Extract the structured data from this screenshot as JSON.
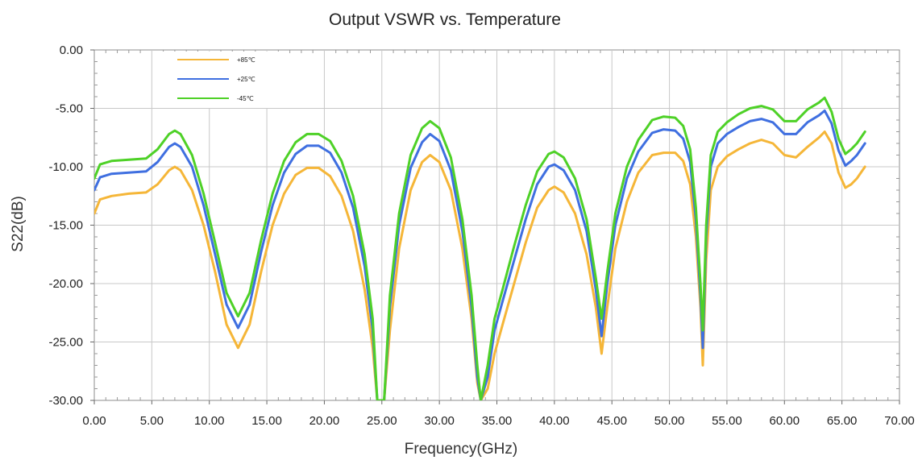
{
  "chart_data": {
    "type": "line",
    "title": "Output VSWR vs. Temperature",
    "xlabel": "Frequency(GHz)",
    "ylabel": "S22(dB)",
    "xlim": [
      0,
      70
    ],
    "ylim": [
      -30,
      0
    ],
    "xticks": [
      "0.00",
      "5.00",
      "10.00",
      "15.00",
      "20.00",
      "25.00",
      "30.00",
      "35.00",
      "40.00",
      "45.00",
      "50.00",
      "55.00",
      "60.00",
      "65.00",
      "70.00"
    ],
    "yticks": [
      "0.00",
      "-5.00",
      "-10.00",
      "-15.00",
      "-20.00",
      "-25.00",
      "-30.00"
    ],
    "grid": true,
    "legend_position": "top-left",
    "series": [
      {
        "name": "+85℃",
        "color": "#F5B638",
        "points": [
          [
            0,
            -14
          ],
          [
            0.5,
            -12.8
          ],
          [
            1.5,
            -12.5
          ],
          [
            3,
            -12.3
          ],
          [
            4.5,
            -12.2
          ],
          [
            5.5,
            -11.5
          ],
          [
            6.5,
            -10.3
          ],
          [
            7,
            -10
          ],
          [
            7.5,
            -10.3
          ],
          [
            8.5,
            -12
          ],
          [
            9.5,
            -15
          ],
          [
            10.5,
            -19
          ],
          [
            11.5,
            -23.5
          ],
          [
            12.5,
            -25.5
          ],
          [
            13.5,
            -23.5
          ],
          [
            14.5,
            -19
          ],
          [
            15.5,
            -15
          ],
          [
            16.5,
            -12.3
          ],
          [
            17.5,
            -10.7
          ],
          [
            18.5,
            -10.1
          ],
          [
            19.5,
            -10.1
          ],
          [
            20.5,
            -10.8
          ],
          [
            21.5,
            -12.5
          ],
          [
            22.5,
            -15.5
          ],
          [
            23.5,
            -20.5
          ],
          [
            24.2,
            -25.5
          ],
          [
            24.6,
            -30
          ],
          [
            25.2,
            -30
          ],
          [
            25.7,
            -24
          ],
          [
            26.5,
            -17
          ],
          [
            27.5,
            -12
          ],
          [
            28.5,
            -9.6
          ],
          [
            29.2,
            -9
          ],
          [
            30,
            -9.6
          ],
          [
            31,
            -12
          ],
          [
            32,
            -17
          ],
          [
            32.8,
            -23
          ],
          [
            33.3,
            -28.5
          ],
          [
            33.6,
            -30
          ],
          [
            34.2,
            -29
          ],
          [
            34.8,
            -26
          ],
          [
            35.5,
            -23.5
          ],
          [
            36.5,
            -20
          ],
          [
            37.5,
            -16.5
          ],
          [
            38.5,
            -13.5
          ],
          [
            39.5,
            -12
          ],
          [
            40,
            -11.7
          ],
          [
            40.8,
            -12.2
          ],
          [
            41.8,
            -14
          ],
          [
            42.8,
            -17.5
          ],
          [
            43.6,
            -22
          ],
          [
            44.1,
            -26
          ],
          [
            44.6,
            -22
          ],
          [
            45.3,
            -17
          ],
          [
            46.3,
            -13
          ],
          [
            47.3,
            -10.5
          ],
          [
            48.5,
            -9
          ],
          [
            49.5,
            -8.8
          ],
          [
            50.5,
            -8.8
          ],
          [
            51.2,
            -9.5
          ],
          [
            51.8,
            -11.5
          ],
          [
            52.3,
            -16
          ],
          [
            52.7,
            -22
          ],
          [
            52.9,
            -27
          ],
          [
            53.2,
            -18
          ],
          [
            53.6,
            -12
          ],
          [
            54.2,
            -10
          ],
          [
            55,
            -9.1
          ],
          [
            56,
            -8.5
          ],
          [
            57,
            -8
          ],
          [
            58,
            -7.7
          ],
          [
            59,
            -8
          ],
          [
            60,
            -9
          ],
          [
            61,
            -9.2
          ],
          [
            62,
            -8.3
          ],
          [
            63,
            -7.5
          ],
          [
            63.5,
            -7
          ],
          [
            64.1,
            -8
          ],
          [
            64.7,
            -10.5
          ],
          [
            65.3,
            -11.8
          ],
          [
            65.8,
            -11.5
          ],
          [
            66.3,
            -11
          ],
          [
            67,
            -10
          ]
        ]
      },
      {
        "name": "+25℃",
        "color": "#3F6FE0",
        "points": [
          [
            0,
            -12
          ],
          [
            0.5,
            -10.9
          ],
          [
            1.5,
            -10.6
          ],
          [
            3,
            -10.5
          ],
          [
            4.5,
            -10.4
          ],
          [
            5.5,
            -9.6
          ],
          [
            6.5,
            -8.3
          ],
          [
            7,
            -8
          ],
          [
            7.5,
            -8.3
          ],
          [
            8.5,
            -10
          ],
          [
            9.5,
            -13.3
          ],
          [
            10.5,
            -17.5
          ],
          [
            11.5,
            -21.8
          ],
          [
            12.5,
            -23.8
          ],
          [
            13.5,
            -21.8
          ],
          [
            14.5,
            -17.3
          ],
          [
            15.5,
            -13.3
          ],
          [
            16.5,
            -10.5
          ],
          [
            17.5,
            -8.9
          ],
          [
            18.5,
            -8.2
          ],
          [
            19.5,
            -8.2
          ],
          [
            20.5,
            -8.8
          ],
          [
            21.5,
            -10.5
          ],
          [
            22.5,
            -13.5
          ],
          [
            23.5,
            -18.5
          ],
          [
            24.2,
            -24
          ],
          [
            24.6,
            -30
          ],
          [
            25.2,
            -30
          ],
          [
            25.7,
            -22
          ],
          [
            26.5,
            -15
          ],
          [
            27.5,
            -10.1
          ],
          [
            28.5,
            -7.9
          ],
          [
            29.2,
            -7.2
          ],
          [
            30,
            -7.8
          ],
          [
            31,
            -10.3
          ],
          [
            32,
            -15.5
          ],
          [
            32.8,
            -22
          ],
          [
            33.3,
            -28
          ],
          [
            33.6,
            -30
          ],
          [
            34.2,
            -28
          ],
          [
            34.8,
            -24
          ],
          [
            35.5,
            -21.5
          ],
          [
            36.5,
            -18
          ],
          [
            37.5,
            -14.5
          ],
          [
            38.5,
            -11.5
          ],
          [
            39.5,
            -10
          ],
          [
            40,
            -9.8
          ],
          [
            40.8,
            -10.3
          ],
          [
            41.8,
            -12
          ],
          [
            42.8,
            -15.5
          ],
          [
            43.6,
            -20.5
          ],
          [
            44.1,
            -24.5
          ],
          [
            44.6,
            -20
          ],
          [
            45.3,
            -15
          ],
          [
            46.3,
            -11
          ],
          [
            47.3,
            -8.7
          ],
          [
            48.5,
            -7.1
          ],
          [
            49.5,
            -6.8
          ],
          [
            50.5,
            -6.9
          ],
          [
            51.2,
            -7.6
          ],
          [
            51.8,
            -9.6
          ],
          [
            52.3,
            -14.5
          ],
          [
            52.7,
            -21
          ],
          [
            52.9,
            -25.5
          ],
          [
            53.2,
            -16
          ],
          [
            53.6,
            -10
          ],
          [
            54.2,
            -8
          ],
          [
            55,
            -7.2
          ],
          [
            56,
            -6.6
          ],
          [
            57,
            -6.1
          ],
          [
            58,
            -5.9
          ],
          [
            59,
            -6.2
          ],
          [
            60,
            -7.2
          ],
          [
            61,
            -7.2
          ],
          [
            62,
            -6.2
          ],
          [
            63,
            -5.6
          ],
          [
            63.5,
            -5.2
          ],
          [
            64.1,
            -6.3
          ],
          [
            64.7,
            -8.6
          ],
          [
            65.3,
            -9.9
          ],
          [
            65.8,
            -9.5
          ],
          [
            66.3,
            -9
          ],
          [
            67,
            -8
          ]
        ]
      },
      {
        "name": "-45℃",
        "color": "#4ED127",
        "points": [
          [
            0,
            -11
          ],
          [
            0.5,
            -9.8
          ],
          [
            1.5,
            -9.5
          ],
          [
            3,
            -9.4
          ],
          [
            4.5,
            -9.3
          ],
          [
            5.5,
            -8.5
          ],
          [
            6.5,
            -7.2
          ],
          [
            7,
            -6.9
          ],
          [
            7.5,
            -7.2
          ],
          [
            8.5,
            -9
          ],
          [
            9.5,
            -12.3
          ],
          [
            10.5,
            -16.5
          ],
          [
            11.5,
            -20.8
          ],
          [
            12.5,
            -22.8
          ],
          [
            13.5,
            -20.8
          ],
          [
            14.5,
            -16.3
          ],
          [
            15.5,
            -12.3
          ],
          [
            16.5,
            -9.5
          ],
          [
            17.5,
            -7.9
          ],
          [
            18.5,
            -7.2
          ],
          [
            19.5,
            -7.2
          ],
          [
            20.5,
            -7.8
          ],
          [
            21.5,
            -9.5
          ],
          [
            22.5,
            -12.5
          ],
          [
            23.5,
            -17.5
          ],
          [
            24.2,
            -23
          ],
          [
            24.6,
            -30
          ],
          [
            25.2,
            -30
          ],
          [
            25.7,
            -21
          ],
          [
            26.5,
            -14
          ],
          [
            27.5,
            -9
          ],
          [
            28.5,
            -6.7
          ],
          [
            29.2,
            -6.1
          ],
          [
            30,
            -6.7
          ],
          [
            31,
            -9.2
          ],
          [
            32,
            -14.5
          ],
          [
            32.8,
            -21
          ],
          [
            33.3,
            -27
          ],
          [
            33.6,
            -30
          ],
          [
            34.2,
            -27
          ],
          [
            34.8,
            -23
          ],
          [
            35.5,
            -20.5
          ],
          [
            36.5,
            -16.8
          ],
          [
            37.5,
            -13.3
          ],
          [
            38.5,
            -10.4
          ],
          [
            39.5,
            -8.9
          ],
          [
            40,
            -8.7
          ],
          [
            40.8,
            -9.2
          ],
          [
            41.8,
            -11
          ],
          [
            42.8,
            -14.5
          ],
          [
            43.6,
            -19.5
          ],
          [
            44.1,
            -23
          ],
          [
            44.6,
            -19
          ],
          [
            45.3,
            -14
          ],
          [
            46.3,
            -10
          ],
          [
            47.3,
            -7.7
          ],
          [
            48.5,
            -6
          ],
          [
            49.5,
            -5.7
          ],
          [
            50.5,
            -5.8
          ],
          [
            51.2,
            -6.5
          ],
          [
            51.8,
            -8.5
          ],
          [
            52.3,
            -13.5
          ],
          [
            52.7,
            -20
          ],
          [
            52.9,
            -24
          ],
          [
            53.2,
            -15
          ],
          [
            53.6,
            -9
          ],
          [
            54.2,
            -7
          ],
          [
            55,
            -6.2
          ],
          [
            56,
            -5.5
          ],
          [
            57,
            -5
          ],
          [
            58,
            -4.8
          ],
          [
            59,
            -5.1
          ],
          [
            60,
            -6.1
          ],
          [
            61,
            -6.1
          ],
          [
            62,
            -5.1
          ],
          [
            63,
            -4.5
          ],
          [
            63.5,
            -4.1
          ],
          [
            64.1,
            -5.3
          ],
          [
            64.7,
            -7.6
          ],
          [
            65.3,
            -8.9
          ],
          [
            65.8,
            -8.5
          ],
          [
            66.3,
            -8
          ],
          [
            67,
            -7
          ]
        ]
      }
    ]
  }
}
